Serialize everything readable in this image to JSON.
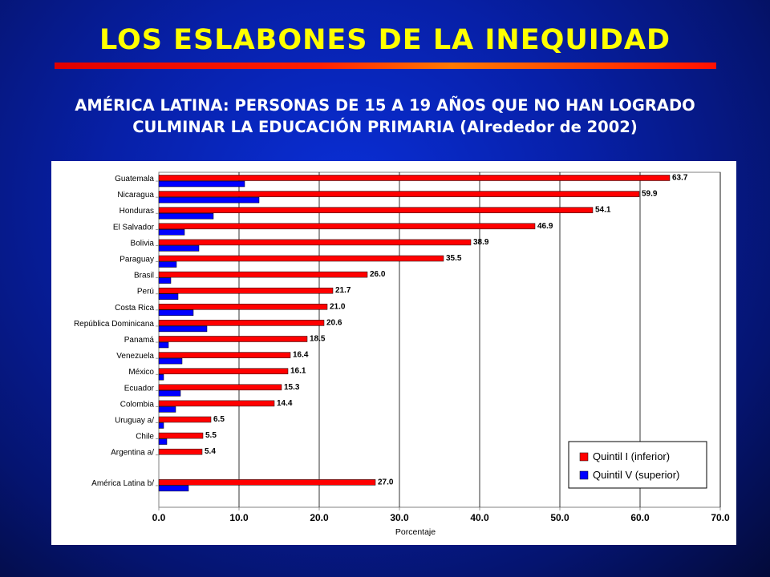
{
  "title": "LOS ESLABONES DE LA INEQUIDAD",
  "subtitle_line1": "AMÉRICA LATINA: PERSONAS DE 15 A 19 AÑOS QUE NO HAN LOGRADO",
  "subtitle_line2": "CULMINAR LA EDUCACIÓN PRIMARIA (Alrededor de 2002)",
  "colors": {
    "title": "#ffff00",
    "quintil_i": "#ff0000",
    "quintil_v": "#0000ff"
  },
  "chart_data": {
    "type": "bar",
    "orientation": "horizontal",
    "title": "",
    "xlabel": "Porcentaje",
    "ylabel": "",
    "xlim": [
      0,
      70
    ],
    "x_ticks": [
      "0.0",
      "10.0",
      "20.0",
      "30.0",
      "40.0",
      "50.0",
      "60.0",
      "70.0"
    ],
    "grid": "vertical",
    "legend_position": "bottom-right",
    "categories": [
      "Guatemala",
      "Nicaragua",
      "Honduras",
      "El Salvador",
      "Bolivia",
      "Paraguay",
      "Brasil",
      "Perú",
      "Costa Rica",
      "República Dominicana",
      "Panamá",
      "Venezuela",
      "México",
      "Ecuador",
      "Colombia",
      "Uruguay a/",
      "Chile",
      "Argentina a/",
      "América Latina b/"
    ],
    "series": [
      {
        "name": "Quintil I (inferior)",
        "values": [
          63.7,
          59.9,
          54.1,
          46.9,
          38.9,
          35.5,
          26.0,
          21.7,
          21.0,
          20.6,
          18.5,
          16.4,
          16.1,
          15.3,
          14.4,
          6.5,
          5.5,
          5.4,
          27.0
        ],
        "labels": [
          "63.7",
          "59.9",
          "54.1",
          "46.9",
          "38.9",
          "35.5",
          "26.0",
          "21.7",
          "21.0",
          "20.6",
          "18.5",
          "16.4",
          "16.1",
          "15.3",
          "14.4",
          "6.5",
          "5.5",
          "5.4",
          "27.0"
        ]
      },
      {
        "name": "Quintil V (superior)",
        "values": [
          10.7,
          12.5,
          6.8,
          3.2,
          5.0,
          2.2,
          1.5,
          2.4,
          4.3,
          6.0,
          1.2,
          2.9,
          0.6,
          2.7,
          2.1,
          0.6,
          1.0,
          0.0,
          3.7
        ]
      }
    ]
  }
}
